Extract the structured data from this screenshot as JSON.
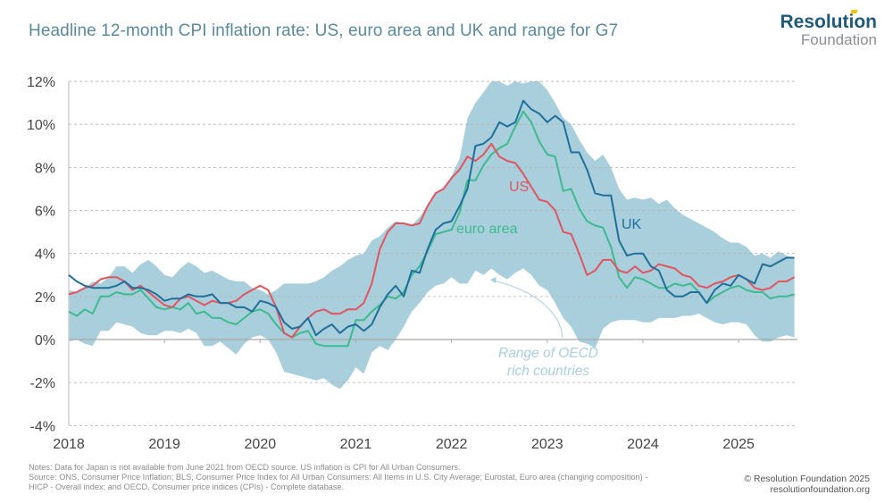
{
  "header": {
    "title": "Headline 12-month CPI inflation rate: US, euro area and UK and range for G7",
    "logo_line1": "Resolution",
    "logo_line2": "Foundation"
  },
  "footer": {
    "notes_line1": "Notes: Data for Japan is not available from June 2021 from OECD source. US inflation is CPI for All Urban Consumers.",
    "notes_line2": "Source: ONS, Consumer Price Inflation; BLS, Consumer Price Index for All Urban Consumers: All Items in U.S. City Average; Eurostat, Euro area (changing composition) -",
    "notes_line3": "HICP - Overall index; and OECD, Consumer price indices (CPIs) - Complete database.",
    "copyright": "© Resolution Foundation 2025",
    "website": "resolutionfoundation.org"
  },
  "colors": {
    "title": "#5a8a9a",
    "band": "#a9cfdd",
    "us": "#e0555f",
    "euro_area": "#3dba8f",
    "uk": "#1f6f9a",
    "annotation": "#a9cfdd",
    "grid": "#b0b0b0",
    "axis_text": "#444444"
  },
  "chart_data": {
    "type": "line",
    "title": "Headline 12-month CPI inflation rate: US, euro area and UK and range for G7",
    "xlabel": "",
    "ylabel": "",
    "x_start": "2018-01",
    "x_frequency": "monthly",
    "x_ticks": [
      "2018",
      "2019",
      "2020",
      "2021",
      "2022",
      "2023",
      "2024",
      "2025"
    ],
    "y_ticks": [
      "12%",
      "10%",
      "8%",
      "6%",
      "4%",
      "2%",
      "0%",
      "-2%",
      "-4%"
    ],
    "y_tick_values": [
      12,
      10,
      8,
      6,
      4,
      2,
      0,
      -2,
      -4
    ],
    "ylim": [
      -4,
      12
    ],
    "grid": "horizontal dashed",
    "series": [
      {
        "name": "UK",
        "label": "UK",
        "values": [
          3.0,
          2.7,
          2.5,
          2.4,
          2.4,
          2.4,
          2.5,
          2.7,
          2.4,
          2.4,
          2.3,
          2.1,
          1.8,
          1.9,
          1.9,
          2.1,
          2.0,
          2.0,
          2.1,
          1.7,
          1.7,
          1.5,
          1.5,
          1.3,
          1.8,
          1.7,
          1.5,
          0.8,
          0.5,
          0.6,
          1.0,
          0.2,
          0.5,
          0.7,
          0.3,
          0.6,
          0.7,
          0.4,
          0.7,
          1.5,
          2.1,
          2.5,
          2.0,
          3.2,
          3.1,
          4.2,
          5.1,
          5.4,
          5.5,
          6.2,
          7.0,
          9.0,
          9.1,
          9.4,
          10.1,
          9.9,
          10.1,
          11.1,
          10.7,
          10.5,
          10.1,
          10.4,
          10.1,
          8.7,
          8.7,
          7.9,
          6.8,
          6.7,
          6.7,
          4.6,
          3.9,
          4.0,
          4.0,
          3.4,
          3.2,
          2.3,
          2.0,
          2.0,
          2.2,
          2.2,
          1.7,
          2.3,
          2.6,
          2.5,
          3.0,
          2.8,
          2.6,
          3.5,
          3.4,
          3.6,
          3.8,
          3.8
        ],
        "end_label_month": "2025-08"
      },
      {
        "name": "US",
        "label": "US",
        "values": [
          2.1,
          2.2,
          2.4,
          2.5,
          2.8,
          2.9,
          2.9,
          2.7,
          2.3,
          2.5,
          2.2,
          1.9,
          1.6,
          1.5,
          1.9,
          2.0,
          1.8,
          1.6,
          1.8,
          1.7,
          1.7,
          1.8,
          2.1,
          2.3,
          2.5,
          2.3,
          1.5,
          0.3,
          0.1,
          0.6,
          1.0,
          1.3,
          1.4,
          1.2,
          1.2,
          1.4,
          1.4,
          1.7,
          2.6,
          4.2,
          5.0,
          5.4,
          5.4,
          5.3,
          5.4,
          6.2,
          6.8,
          7.0,
          7.5,
          7.9,
          8.5,
          8.3,
          8.6,
          9.1,
          8.5,
          8.3,
          8.2,
          7.7,
          7.1,
          6.5,
          6.4,
          6.0,
          5.0,
          4.9,
          4.0,
          3.0,
          3.2,
          3.7,
          3.7,
          3.2,
          3.1,
          3.4,
          3.1,
          3.2,
          3.5,
          3.4,
          3.3,
          3.0,
          2.9,
          2.5,
          2.4,
          2.6,
          2.7,
          2.9,
          3.0,
          2.8,
          2.4,
          2.3,
          2.4,
          2.7,
          2.7,
          2.9
        ]
      },
      {
        "name": "euro area",
        "label": "euro area",
        "values": [
          1.3,
          1.1,
          1.4,
          1.2,
          2.0,
          2.0,
          2.2,
          2.1,
          2.1,
          2.3,
          1.9,
          1.5,
          1.4,
          1.5,
          1.4,
          1.7,
          1.2,
          1.3,
          1.0,
          1.0,
          0.8,
          0.7,
          1.0,
          1.3,
          1.4,
          1.2,
          0.7,
          0.3,
          0.1,
          0.3,
          0.4,
          -0.2,
          -0.3,
          -0.3,
          -0.3,
          -0.3,
          0.9,
          0.9,
          1.3,
          1.6,
          2.0,
          1.9,
          2.2,
          3.0,
          3.4,
          4.1,
          4.9,
          5.0,
          5.1,
          5.9,
          7.4,
          7.4,
          8.1,
          8.6,
          8.9,
          9.1,
          9.9,
          10.6,
          10.1,
          9.2,
          8.6,
          8.5,
          6.9,
          7.0,
          6.1,
          5.5,
          5.3,
          5.2,
          4.3,
          2.9,
          2.4,
          2.9,
          2.8,
          2.6,
          2.4,
          2.4,
          2.6,
          2.5,
          2.6,
          2.2,
          1.7,
          2.0,
          2.2,
          2.4,
          2.5,
          2.3,
          2.2,
          2.2,
          1.9,
          2.0,
          2.0,
          2.1
        ]
      },
      {
        "name": "Range of OECD rich countries (G7)",
        "label": "Range of OECD rich countries",
        "type": "area",
        "upper": [
          2.3,
          2.2,
          2.4,
          2.7,
          2.6,
          2.9,
          3.4,
          3.4,
          3.1,
          3.5,
          3.7,
          3.4,
          3.0,
          2.9,
          3.3,
          3.6,
          3.4,
          3.1,
          3.2,
          3.0,
          2.8,
          2.7,
          2.7,
          2.4,
          2.3,
          2.1,
          2.3,
          2.6,
          2.6,
          2.6,
          2.6,
          2.7,
          2.9,
          3.2,
          3.4,
          3.7,
          3.9,
          4.0,
          4.6,
          4.8,
          5.2,
          5.5,
          5.4,
          5.3,
          5.7,
          6.2,
          6.8,
          7.0,
          7.6,
          8.4,
          10.3,
          11.0,
          11.5,
          12.0,
          12.0,
          11.8,
          12.0,
          11.9,
          12.0,
          12.0,
          11.6,
          11.0,
          10.3,
          10.0,
          9.3,
          8.7,
          8.3,
          8.6,
          8.0,
          7.0,
          6.5,
          6.6,
          6.5,
          6.6,
          6.3,
          6.5,
          6.1,
          5.8,
          5.6,
          5.4,
          5.2,
          5.0,
          4.7,
          4.5,
          4.5,
          4.3,
          3.9,
          4.0,
          3.8,
          4.1,
          3.9,
          3.8
        ],
        "lower": [
          -0.1,
          0.0,
          -0.2,
          -0.3,
          0.4,
          0.4,
          0.8,
          0.7,
          0.6,
          0.3,
          0.2,
          0.2,
          0.4,
          0.4,
          0.3,
          0.5,
          0.3,
          -0.3,
          -0.3,
          -0.1,
          -0.4,
          -0.7,
          -0.2,
          0.1,
          0.2,
          0.0,
          -0.6,
          -1.5,
          -1.6,
          -1.7,
          -1.8,
          -1.9,
          -1.8,
          -2.1,
          -2.3,
          -1.9,
          -1.3,
          -1.6,
          -0.6,
          -0.3,
          -0.5,
          0.0,
          0.6,
          1.3,
          1.7,
          2.2,
          2.5,
          2.6,
          2.9,
          2.6,
          2.6,
          3.2,
          3.0,
          3.3,
          3.0,
          2.8,
          3.1,
          3.3,
          3.0,
          2.5,
          2.3,
          1.7,
          1.0,
          0.6,
          -0.1,
          -0.2,
          -0.4,
          0.5,
          0.8,
          0.9,
          0.9,
          0.9,
          0.8,
          0.8,
          1.0,
          1.0,
          1.0,
          1.1,
          1.1,
          1.2,
          1.0,
          0.8,
          0.7,
          0.8,
          0.8,
          0.7,
          0.2,
          -0.1,
          -0.1,
          0.1,
          0.2,
          0.1
        ]
      }
    ],
    "annotations": [
      {
        "text": "US",
        "series": "US"
      },
      {
        "text": "euro area",
        "series": "euro area"
      },
      {
        "text": "UK",
        "series": "UK"
      },
      {
        "text_line1": "Range of OECD",
        "text_line2": "rich countries",
        "series": "Range of OECD rich countries (G7)"
      }
    ],
    "legend": "inline labels"
  }
}
